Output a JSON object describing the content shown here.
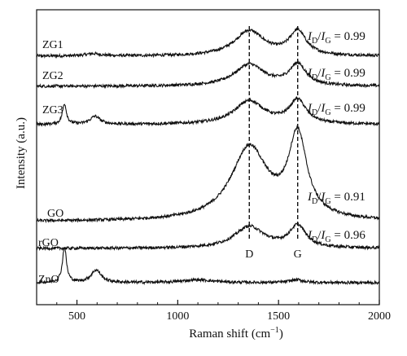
{
  "chart_data": {
    "type": "line",
    "xlabel": "Raman shift (cm",
    "xlabel_sup": "−1",
    "xlabel_end": ")",
    "ylabel": "Intensity (a.u.)",
    "xlim": [
      300,
      2000
    ],
    "x_ticks": [
      500,
      1000,
      1500,
      2000
    ],
    "grid": false,
    "legend": "none (curve labels placed on the left of each spectrum)",
    "reference_lines": [
      {
        "label": "D",
        "x": 1355
      },
      {
        "label": "G",
        "x": 1595
      }
    ],
    "series": [
      {
        "name": "ZG1",
        "ratio": "0.99",
        "peaks": [
          {
            "x": 580,
            "height": 0.04,
            "width": 45
          },
          {
            "x": 1355,
            "height": 0.44,
            "width": 90
          },
          {
            "x": 1595,
            "height": 0.42,
            "width": 50
          }
        ]
      },
      {
        "name": "ZG2",
        "ratio": "0.99",
        "peaks": [
          {
            "x": 1355,
            "height": 0.38,
            "width": 90
          },
          {
            "x": 1595,
            "height": 0.37,
            "width": 50
          }
        ]
      },
      {
        "name": "ZG3",
        "ratio": "0.99",
        "peaks": [
          {
            "x": 438,
            "height": 0.36,
            "width": 12
          },
          {
            "x": 590,
            "height": 0.14,
            "width": 30
          },
          {
            "x": 1355,
            "height": 0.41,
            "width": 90
          },
          {
            "x": 1595,
            "height": 0.41,
            "width": 50
          }
        ]
      },
      {
        "name": "GO",
        "ratio": "0.91",
        "peaks": [
          {
            "x": 1355,
            "height": 1.28,
            "width": 110
          },
          {
            "x": 1595,
            "height": 1.43,
            "width": 55
          }
        ]
      },
      {
        "name": "rGO",
        "ratio": "0.96",
        "peaks": [
          {
            "x": 1355,
            "height": 0.38,
            "width": 90
          },
          {
            "x": 1595,
            "height": 0.38,
            "width": 50
          }
        ]
      },
      {
        "name": "ZnO",
        "ratio": "",
        "peaks": [
          {
            "x": 438,
            "height": 0.62,
            "width": 12
          },
          {
            "x": 595,
            "height": 0.22,
            "width": 30
          },
          {
            "x": 1100,
            "height": 0.05,
            "width": 90
          },
          {
            "x": 1590,
            "height": 0.05,
            "width": 40
          }
        ]
      }
    ]
  },
  "ratio_text": {
    "i": "I",
    "d": "D",
    "g": "G",
    "slash": "/",
    "equals": " = "
  }
}
